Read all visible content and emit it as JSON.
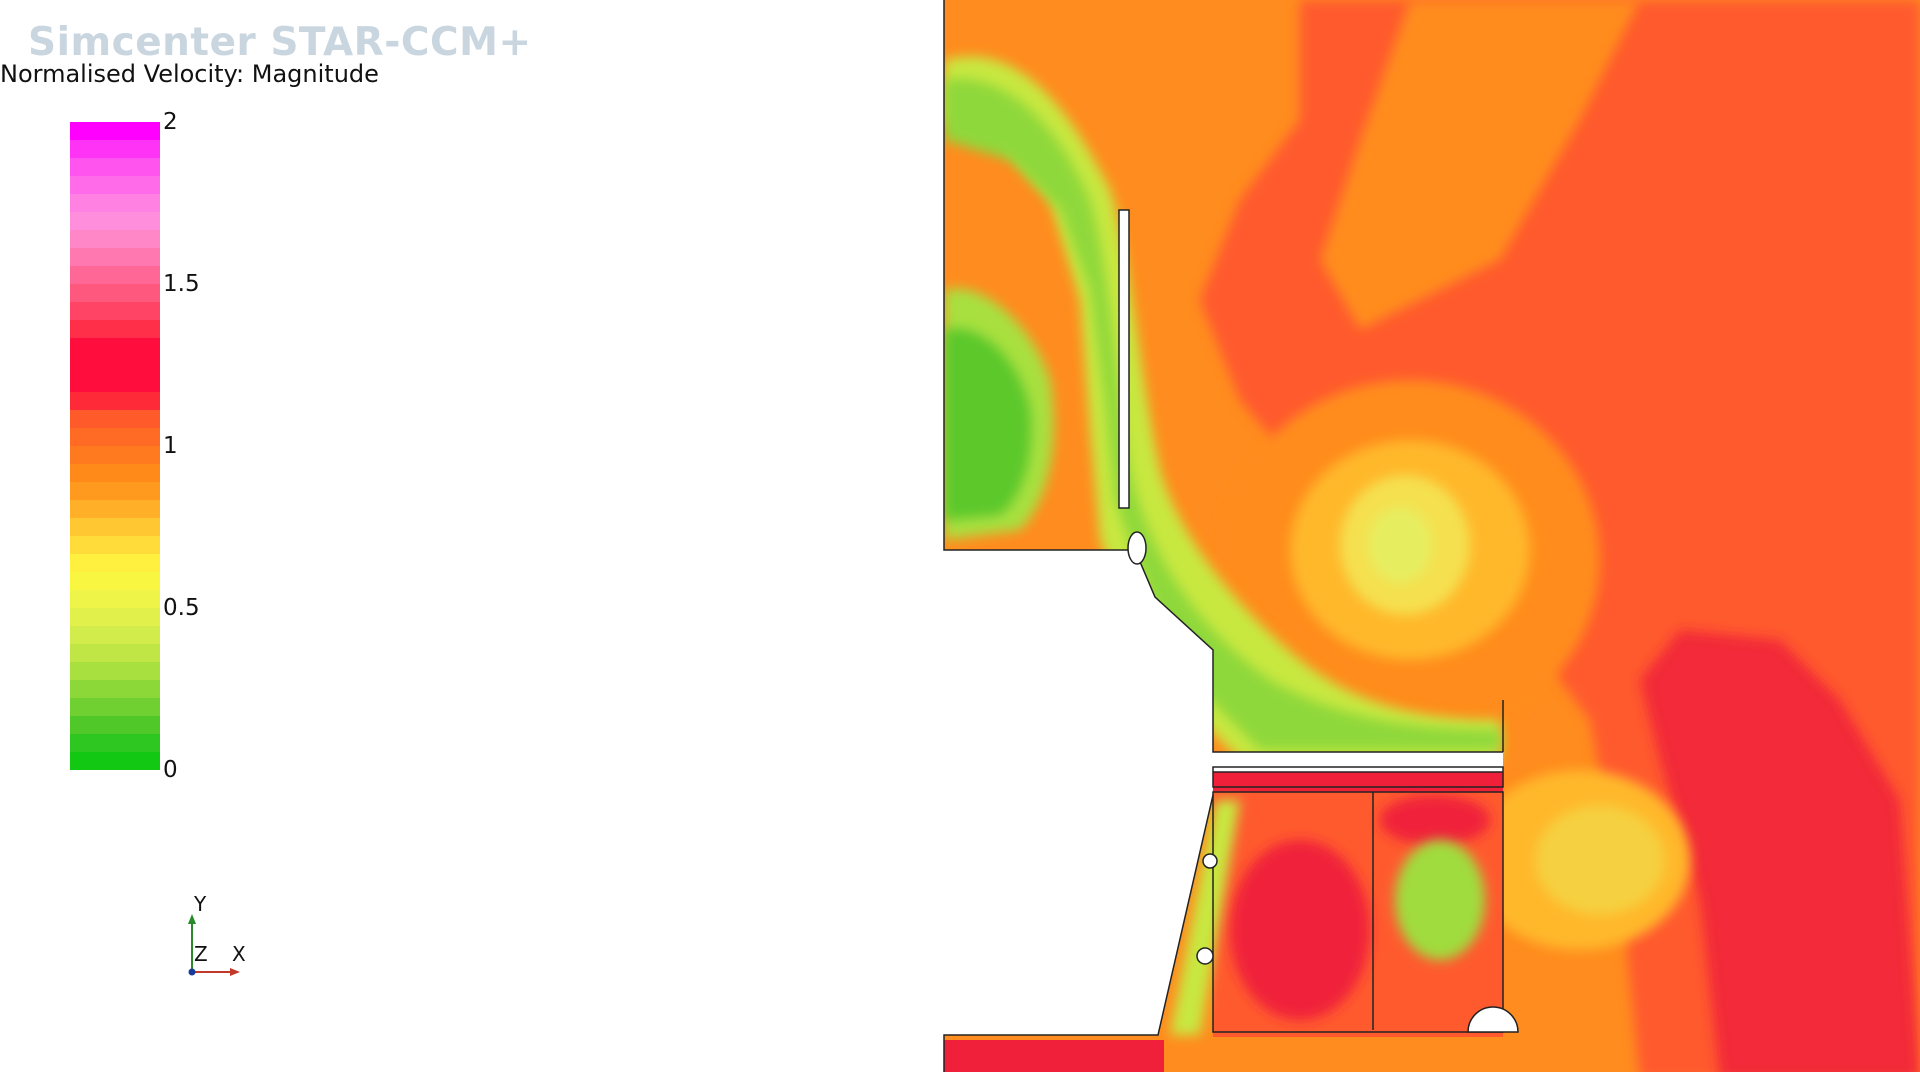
{
  "app": {
    "watermark": "Simcenter STAR-CCM+"
  },
  "scalar_bar": {
    "title": "Normalised Velocity: Magnitude",
    "min": 0,
    "max": 2,
    "ticks": [
      "2",
      "1.5",
      "1",
      "0.5",
      "0"
    ],
    "band_colors_top_to_bottom": [
      "#ff00ff",
      "#ff33f5",
      "#ff55ee",
      "#ff6be8",
      "#ff82e2",
      "#ff8fdc",
      "#ff87c8",
      "#ff78b0",
      "#ff6896",
      "#ff587e",
      "#ff4466",
      "#ff2f4a",
      "#ff0d3c",
      "#ff0d3c",
      "#ff0d3c",
      "#ff2a38",
      "#ff5a2a",
      "#ff6a24",
      "#ff7a1e",
      "#ff8a1a",
      "#ff9a1e",
      "#ffb028",
      "#ffc832",
      "#ffdc3a",
      "#fff040",
      "#f8f640",
      "#eef448",
      "#e2f04c",
      "#d2ec4c",
      "#c0e646",
      "#a8e040",
      "#8cd838",
      "#70d032",
      "#50c82a",
      "#2ec620",
      "#12c812"
    ]
  },
  "axes": {
    "y": "Y",
    "z": "Z",
    "x": "X"
  },
  "colors": {
    "field_red": "#ff5a2e",
    "field_orange": "#ff8c1e",
    "field_deep_red": "#f0203a",
    "field_yellow": "#f5e050",
    "field_green": "#6ed232"
  }
}
